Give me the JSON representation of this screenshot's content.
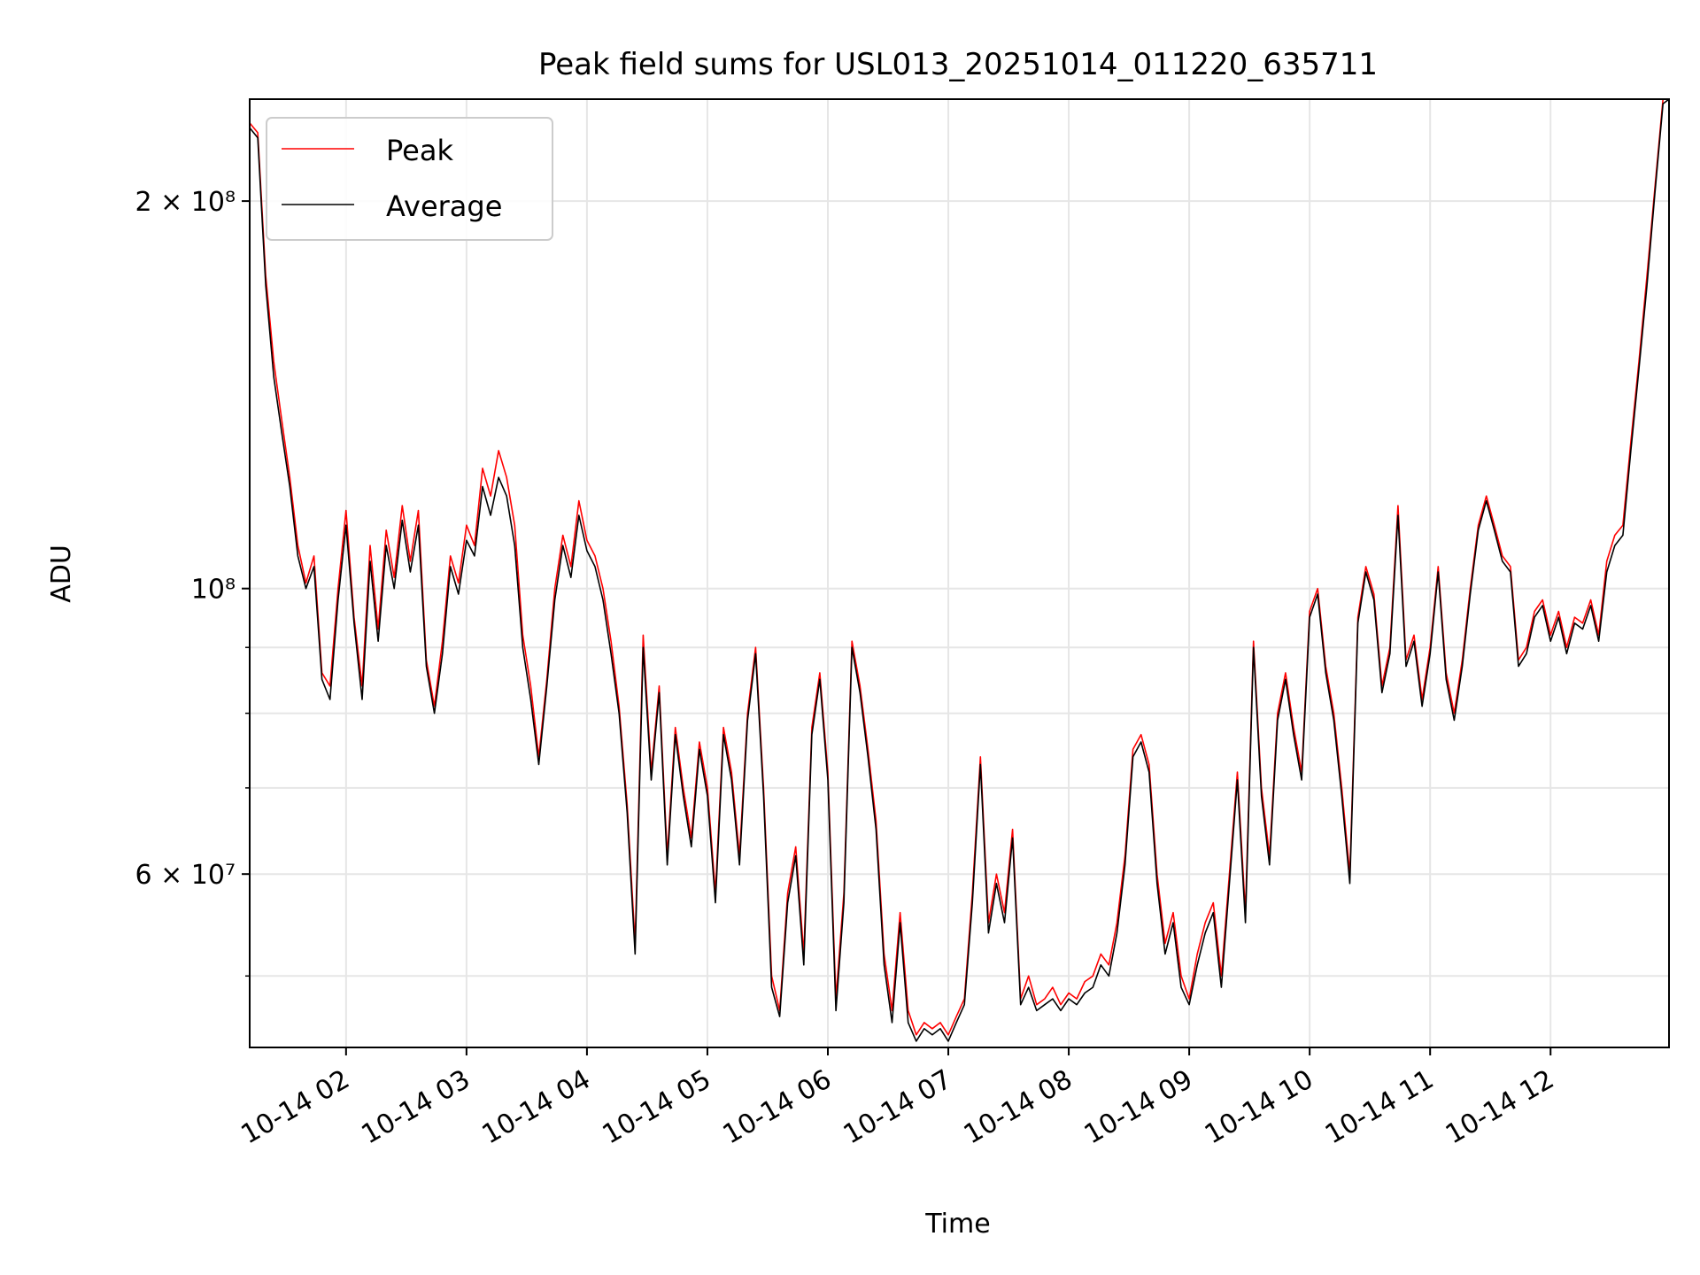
{
  "chart_data": {
    "type": "line",
    "title": "Peak field sums for USL013_20251014_011220_635711",
    "xlabel": "Time",
    "ylabel": "ADU",
    "yscale": "log",
    "ylim": [
      44000000,
      240000000
    ],
    "xlim": [
      "2025-10-14 01:12",
      "2025-10-14 12:59"
    ],
    "grid": true,
    "legend_position": "top-left",
    "x_tick_labels": [
      "10-14 02",
      "10-14 03",
      "10-14 04",
      "10-14 05",
      "10-14 06",
      "10-14 07",
      "10-14 08",
      "10-14 09",
      "10-14 10",
      "10-14 11",
      "10-14 12"
    ],
    "y_tick_labels": [
      "2 × 10⁸",
      "10⁸",
      "6 × 10⁷"
    ],
    "series": [
      {
        "name": "Peak",
        "color": "#ff0000",
        "x": [
          "2025-10-14 01:12",
          "2025-10-14 01:16",
          "2025-10-14 01:20",
          "2025-10-14 01:24",
          "2025-10-14 01:28",
          "2025-10-14 01:32",
          "2025-10-14 01:36",
          "2025-10-14 01:40",
          "2025-10-14 01:44",
          "2025-10-14 01:48",
          "2025-10-14 01:52",
          "2025-10-14 01:56",
          "2025-10-14 02:00",
          "2025-10-14 02:04",
          "2025-10-14 02:08",
          "2025-10-14 02:12",
          "2025-10-14 02:16",
          "2025-10-14 02:20",
          "2025-10-14 02:24",
          "2025-10-14 02:28",
          "2025-10-14 02:32",
          "2025-10-14 02:36",
          "2025-10-14 02:40",
          "2025-10-14 02:44",
          "2025-10-14 02:48",
          "2025-10-14 02:52",
          "2025-10-14 02:56",
          "2025-10-14 03:00",
          "2025-10-14 03:04",
          "2025-10-14 03:08",
          "2025-10-14 03:12",
          "2025-10-14 03:16",
          "2025-10-14 03:20",
          "2025-10-14 03:24",
          "2025-10-14 03:28",
          "2025-10-14 03:32",
          "2025-10-14 03:36",
          "2025-10-14 03:40",
          "2025-10-14 03:44",
          "2025-10-14 03:48",
          "2025-10-14 03:52",
          "2025-10-14 03:56",
          "2025-10-14 04:00",
          "2025-10-14 04:04",
          "2025-10-14 04:08",
          "2025-10-14 04:12",
          "2025-10-14 04:16",
          "2025-10-14 04:20",
          "2025-10-14 04:24",
          "2025-10-14 04:28",
          "2025-10-14 04:32",
          "2025-10-14 04:36",
          "2025-10-14 04:40",
          "2025-10-14 04:44",
          "2025-10-14 04:48",
          "2025-10-14 04:52",
          "2025-10-14 04:56",
          "2025-10-14 05:00",
          "2025-10-14 05:04",
          "2025-10-14 05:08",
          "2025-10-14 05:12",
          "2025-10-14 05:16",
          "2025-10-14 05:20",
          "2025-10-14 05:24",
          "2025-10-14 05:28",
          "2025-10-14 05:32",
          "2025-10-14 05:36",
          "2025-10-14 05:40",
          "2025-10-14 05:44",
          "2025-10-14 05:48",
          "2025-10-14 05:52",
          "2025-10-14 05:56",
          "2025-10-14 06:00",
          "2025-10-14 06:04",
          "2025-10-14 06:08",
          "2025-10-14 06:12",
          "2025-10-14 06:16",
          "2025-10-14 06:20",
          "2025-10-14 06:24",
          "2025-10-14 06:28",
          "2025-10-14 06:32",
          "2025-10-14 06:36",
          "2025-10-14 06:40",
          "2025-10-14 06:44",
          "2025-10-14 06:48",
          "2025-10-14 06:52",
          "2025-10-14 06:56",
          "2025-10-14 07:00",
          "2025-10-14 07:04",
          "2025-10-14 07:08",
          "2025-10-14 07:12",
          "2025-10-14 07:16",
          "2025-10-14 07:20",
          "2025-10-14 07:24",
          "2025-10-14 07:28",
          "2025-10-14 07:32",
          "2025-10-14 07:36",
          "2025-10-14 07:40",
          "2025-10-14 07:44",
          "2025-10-14 07:48",
          "2025-10-14 07:52",
          "2025-10-14 07:56",
          "2025-10-14 08:00",
          "2025-10-14 08:04",
          "2025-10-14 08:08",
          "2025-10-14 08:12",
          "2025-10-14 08:16",
          "2025-10-14 08:20",
          "2025-10-14 08:24",
          "2025-10-14 08:28",
          "2025-10-14 08:32",
          "2025-10-14 08:36",
          "2025-10-14 08:40",
          "2025-10-14 08:44",
          "2025-10-14 08:48",
          "2025-10-14 08:52",
          "2025-10-14 08:56",
          "2025-10-14 09:00",
          "2025-10-14 09:04",
          "2025-10-14 09:08",
          "2025-10-14 09:12",
          "2025-10-14 09:16",
          "2025-10-14 09:20",
          "2025-10-14 09:24",
          "2025-10-14 09:28",
          "2025-10-14 09:32",
          "2025-10-14 09:36",
          "2025-10-14 09:40",
          "2025-10-14 09:44",
          "2025-10-14 09:48",
          "2025-10-14 09:52",
          "2025-10-14 09:56",
          "2025-10-14 10:00",
          "2025-10-14 10:04",
          "2025-10-14 10:08",
          "2025-10-14 10:12",
          "2025-10-14 10:16",
          "2025-10-14 10:20",
          "2025-10-14 10:24",
          "2025-10-14 10:28",
          "2025-10-14 10:32",
          "2025-10-14 10:36",
          "2025-10-14 10:40",
          "2025-10-14 10:44",
          "2025-10-14 10:48",
          "2025-10-14 10:52",
          "2025-10-14 10:56",
          "2025-10-14 11:00",
          "2025-10-14 11:04",
          "2025-10-14 11:08",
          "2025-10-14 11:12",
          "2025-10-14 11:16",
          "2025-10-14 11:20",
          "2025-10-14 11:24",
          "2025-10-14 11:28",
          "2025-10-14 11:32",
          "2025-10-14 11:36",
          "2025-10-14 11:40",
          "2025-10-14 11:44",
          "2025-10-14 11:48",
          "2025-10-14 11:52",
          "2025-10-14 11:56",
          "2025-10-14 12:00",
          "2025-10-14 12:04",
          "2025-10-14 12:08",
          "2025-10-14 12:12",
          "2025-10-14 12:16",
          "2025-10-14 12:20",
          "2025-10-14 12:24",
          "2025-10-14 12:28",
          "2025-10-14 12:32",
          "2025-10-14 12:36",
          "2025-10-14 12:40",
          "2025-10-14 12:44",
          "2025-10-14 12:48",
          "2025-10-14 12:52",
          "2025-10-14 12:56",
          "2025-10-14 12:59"
        ],
        "values": [
          230000000,
          226000000,
          175000000,
          150000000,
          135000000,
          122000000,
          108000000,
          101000000,
          106000000,
          86000000,
          84000000,
          100000000,
          115000000,
          95000000,
          84000000,
          108000000,
          93000000,
          111000000,
          102000000,
          116000000,
          105000000,
          115000000,
          88000000,
          81000000,
          91000000,
          106000000,
          101000000,
          112000000,
          108000000,
          124000000,
          118000000,
          128000000,
          122000000,
          112000000,
          92000000,
          84000000,
          74000000,
          85000000,
          100000000,
          110000000,
          104000000,
          117000000,
          109000000,
          106000000,
          100000000,
          91000000,
          81000000,
          68000000,
          53000000,
          92000000,
          72000000,
          84000000,
          62000000,
          78000000,
          70000000,
          64000000,
          76000000,
          70000000,
          58000000,
          78000000,
          72000000,
          62000000,
          80000000,
          90000000,
          70000000,
          50000000,
          47000000,
          58000000,
          63000000,
          52000000,
          78000000,
          86000000,
          72000000,
          48000000,
          58000000,
          91000000,
          84000000,
          75000000,
          66000000,
          52000000,
          47000000,
          56000000,
          47000000,
          45000000,
          46000000,
          45500000,
          46000000,
          45000000,
          46500000,
          48000000,
          58000000,
          74000000,
          55000000,
          60000000,
          56000000,
          65000000,
          48000000,
          50000000,
          47500000,
          48000000,
          49000000,
          47500000,
          48500000,
          48000000,
          49500000,
          50000000,
          52000000,
          51000000,
          55000000,
          62000000,
          75000000,
          77000000,
          73000000,
          60000000,
          53000000,
          56000000,
          50000000,
          48000000,
          52000000,
          55000000,
          57000000,
          50000000,
          60000000,
          72000000,
          56000000,
          91000000,
          70000000,
          62000000,
          80000000,
          86000000,
          78000000,
          72000000,
          96000000,
          100000000,
          87000000,
          80000000,
          70000000,
          60000000,
          95000000,
          104000000,
          99000000,
          84000000,
          90000000,
          116000000,
          88000000,
          92000000,
          82000000,
          90000000,
          104000000,
          86000000,
          80000000,
          88000000,
          100000000,
          112000000,
          118000000,
          112000000,
          106000000,
          104000000,
          88000000,
          90000000,
          96000000,
          98000000,
          92000000,
          96000000,
          90000000,
          95000000,
          94000000,
          98000000,
          92000000,
          105000000,
          110000000,
          112000000,
          130000000,
          150000000,
          175000000,
          205000000,
          240000000,
          240000000
        ]
      },
      {
        "name": "Average",
        "color": "#000000",
        "x": [
          "2025-10-14 01:12",
          "2025-10-14 01:16",
          "2025-10-14 01:20",
          "2025-10-14 01:24",
          "2025-10-14 01:28",
          "2025-10-14 01:32",
          "2025-10-14 01:36",
          "2025-10-14 01:40",
          "2025-10-14 01:44",
          "2025-10-14 01:48",
          "2025-10-14 01:52",
          "2025-10-14 01:56",
          "2025-10-14 02:00",
          "2025-10-14 02:04",
          "2025-10-14 02:08",
          "2025-10-14 02:12",
          "2025-10-14 02:16",
          "2025-10-14 02:20",
          "2025-10-14 02:24",
          "2025-10-14 02:28",
          "2025-10-14 02:32",
          "2025-10-14 02:36",
          "2025-10-14 02:40",
          "2025-10-14 02:44",
          "2025-10-14 02:48",
          "2025-10-14 02:52",
          "2025-10-14 02:56",
          "2025-10-14 03:00",
          "2025-10-14 03:04",
          "2025-10-14 03:08",
          "2025-10-14 03:12",
          "2025-10-14 03:16",
          "2025-10-14 03:20",
          "2025-10-14 03:24",
          "2025-10-14 03:28",
          "2025-10-14 03:32",
          "2025-10-14 03:36",
          "2025-10-14 03:40",
          "2025-10-14 03:44",
          "2025-10-14 03:48",
          "2025-10-14 03:52",
          "2025-10-14 03:56",
          "2025-10-14 04:00",
          "2025-10-14 04:04",
          "2025-10-14 04:08",
          "2025-10-14 04:12",
          "2025-10-14 04:16",
          "2025-10-14 04:20",
          "2025-10-14 04:24",
          "2025-10-14 04:28",
          "2025-10-14 04:32",
          "2025-10-14 04:36",
          "2025-10-14 04:40",
          "2025-10-14 04:44",
          "2025-10-14 04:48",
          "2025-10-14 04:52",
          "2025-10-14 04:56",
          "2025-10-14 05:00",
          "2025-10-14 05:04",
          "2025-10-14 05:08",
          "2025-10-14 05:12",
          "2025-10-14 05:16",
          "2025-10-14 05:20",
          "2025-10-14 05:24",
          "2025-10-14 05:28",
          "2025-10-14 05:32",
          "2025-10-14 05:36",
          "2025-10-14 05:40",
          "2025-10-14 05:44",
          "2025-10-14 05:48",
          "2025-10-14 05:52",
          "2025-10-14 05:56",
          "2025-10-14 06:00",
          "2025-10-14 06:04",
          "2025-10-14 06:08",
          "2025-10-14 06:12",
          "2025-10-14 06:16",
          "2025-10-14 06:20",
          "2025-10-14 06:24",
          "2025-10-14 06:28",
          "2025-10-14 06:32",
          "2025-10-14 06:36",
          "2025-10-14 06:40",
          "2025-10-14 06:44",
          "2025-10-14 06:48",
          "2025-10-14 06:52",
          "2025-10-14 06:56",
          "2025-10-14 07:00",
          "2025-10-14 07:04",
          "2025-10-14 07:08",
          "2025-10-14 07:12",
          "2025-10-14 07:16",
          "2025-10-14 07:20",
          "2025-10-14 07:24",
          "2025-10-14 07:28",
          "2025-10-14 07:32",
          "2025-10-14 07:36",
          "2025-10-14 07:40",
          "2025-10-14 07:44",
          "2025-10-14 07:48",
          "2025-10-14 07:52",
          "2025-10-14 07:56",
          "2025-10-14 08:00",
          "2025-10-14 08:04",
          "2025-10-14 08:08",
          "2025-10-14 08:12",
          "2025-10-14 08:16",
          "2025-10-14 08:20",
          "2025-10-14 08:24",
          "2025-10-14 08:28",
          "2025-10-14 08:32",
          "2025-10-14 08:36",
          "2025-10-14 08:40",
          "2025-10-14 08:44",
          "2025-10-14 08:48",
          "2025-10-14 08:52",
          "2025-10-14 08:56",
          "2025-10-14 09:00",
          "2025-10-14 09:04",
          "2025-10-14 09:08",
          "2025-10-14 09:12",
          "2025-10-14 09:16",
          "2025-10-14 09:20",
          "2025-10-14 09:24",
          "2025-10-14 09:28",
          "2025-10-14 09:32",
          "2025-10-14 09:36",
          "2025-10-14 09:40",
          "2025-10-14 09:44",
          "2025-10-14 09:48",
          "2025-10-14 09:52",
          "2025-10-14 09:56",
          "2025-10-14 10:00",
          "2025-10-14 10:04",
          "2025-10-14 10:08",
          "2025-10-14 10:12",
          "2025-10-14 10:16",
          "2025-10-14 10:20",
          "2025-10-14 10:24",
          "2025-10-14 10:28",
          "2025-10-14 10:32",
          "2025-10-14 10:36",
          "2025-10-14 10:40",
          "2025-10-14 10:44",
          "2025-10-14 10:48",
          "2025-10-14 10:52",
          "2025-10-14 10:56",
          "2025-10-14 11:00",
          "2025-10-14 11:04",
          "2025-10-14 11:08",
          "2025-10-14 11:12",
          "2025-10-14 11:16",
          "2025-10-14 11:20",
          "2025-10-14 11:24",
          "2025-10-14 11:28",
          "2025-10-14 11:32",
          "2025-10-14 11:36",
          "2025-10-14 11:40",
          "2025-10-14 11:44",
          "2025-10-14 11:48",
          "2025-10-14 11:52",
          "2025-10-14 11:56",
          "2025-10-14 12:00",
          "2025-10-14 12:04",
          "2025-10-14 12:08",
          "2025-10-14 12:12",
          "2025-10-14 12:16",
          "2025-10-14 12:20",
          "2025-10-14 12:24",
          "2025-10-14 12:28",
          "2025-10-14 12:32",
          "2025-10-14 12:36",
          "2025-10-14 12:40",
          "2025-10-14 12:44",
          "2025-10-14 12:48",
          "2025-10-14 12:52",
          "2025-10-14 12:56",
          "2025-10-14 12:59"
        ],
        "values": [
          228000000,
          224000000,
          172000000,
          146000000,
          132000000,
          120000000,
          106000000,
          100000000,
          104000000,
          85000000,
          82000000,
          98000000,
          112000000,
          94000000,
          82000000,
          105000000,
          91000000,
          108000000,
          100000000,
          113000000,
          103000000,
          112000000,
          87000000,
          80000000,
          89000000,
          104000000,
          99000000,
          109000000,
          106000000,
          120000000,
          114000000,
          122000000,
          118000000,
          108000000,
          90000000,
          82000000,
          73000000,
          84000000,
          98000000,
          108000000,
          102000000,
          114000000,
          107000000,
          104000000,
          98000000,
          89000000,
          80000000,
          67000000,
          52000000,
          90000000,
          71000000,
          83000000,
          61000000,
          77000000,
          69000000,
          63000000,
          75000000,
          69000000,
          57000000,
          77000000,
          71000000,
          61000000,
          79000000,
          89000000,
          69000000,
          49000000,
          46500000,
          57000000,
          62000000,
          51000000,
          77000000,
          85000000,
          71000000,
          47000000,
          57000000,
          90000000,
          83000000,
          74000000,
          65000000,
          51000000,
          46000000,
          55000000,
          46000000,
          44500000,
          45500000,
          45000000,
          45500000,
          44500000,
          46000000,
          47500000,
          57000000,
          73000000,
          54000000,
          59000000,
          55000000,
          64000000,
          47500000,
          49000000,
          47000000,
          47500000,
          48000000,
          47000000,
          48000000,
          47500000,
          48500000,
          49000000,
          51000000,
          50000000,
          54000000,
          61000000,
          74000000,
          76000000,
          72000000,
          59000000,
          52000000,
          55000000,
          49000000,
          47500000,
          51000000,
          54000000,
          56000000,
          49000000,
          59000000,
          71000000,
          55000000,
          90000000,
          69000000,
          61000000,
          79000000,
          85000000,
          77000000,
          71000000,
          95000000,
          99000000,
          86000000,
          79000000,
          69000000,
          59000000,
          94000000,
          103000000,
          98000000,
          83000000,
          89000000,
          114000000,
          87000000,
          91000000,
          81000000,
          89000000,
          103000000,
          85000000,
          79000000,
          87000000,
          99000000,
          111000000,
          117000000,
          111000000,
          105000000,
          103000000,
          87000000,
          89000000,
          95000000,
          97000000,
          91000000,
          95000000,
          89000000,
          94000000,
          93000000,
          97000000,
          91000000,
          103000000,
          108000000,
          110000000,
          128000000,
          148000000,
          172000000,
          203000000,
          238000000,
          240000000
        ]
      }
    ]
  }
}
